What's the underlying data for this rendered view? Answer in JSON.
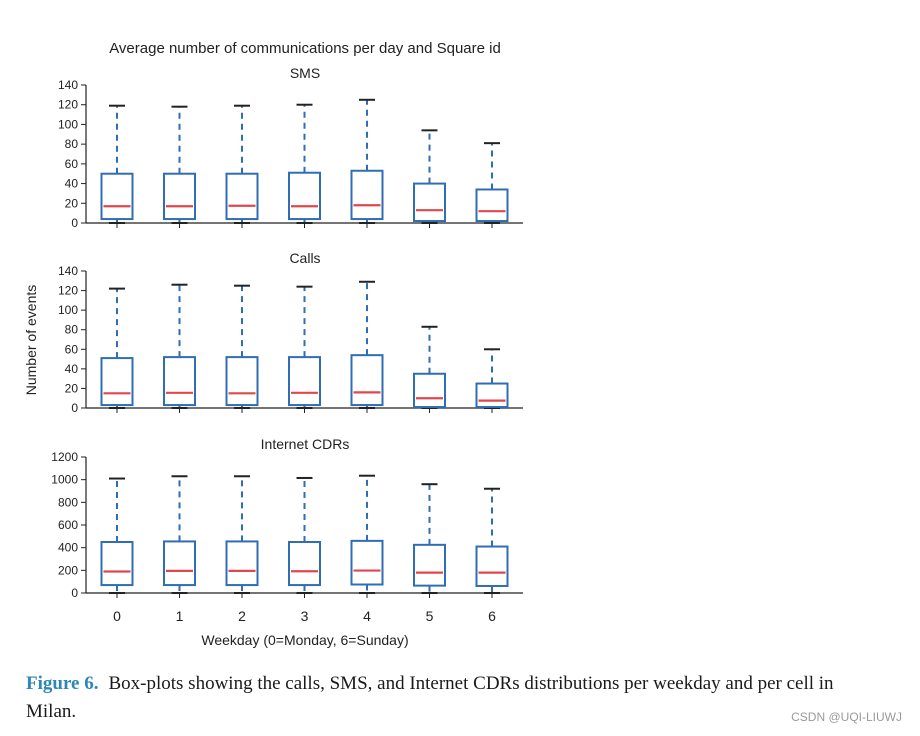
{
  "chart_data": {
    "type": "boxplot",
    "title": "Average number of communications per day and Square id",
    "xlabel": "Weekday (0=Monday, 6=Sunday)",
    "ylabel": "Number of events",
    "categories": [
      "0",
      "1",
      "2",
      "3",
      "4",
      "5",
      "6"
    ],
    "colors": {
      "box": "#2f6db5",
      "median": "#e0474c",
      "axis": "#222222"
    },
    "panels": [
      {
        "subtitle": "SMS",
        "ylim": [
          0,
          140
        ],
        "yticks": [
          0,
          20,
          40,
          60,
          80,
          100,
          120,
          140
        ],
        "boxes": [
          {
            "min": 0,
            "q1": 4,
            "median": 17,
            "q3": 50,
            "max": 119
          },
          {
            "min": 0,
            "q1": 4,
            "median": 17,
            "q3": 50,
            "max": 118
          },
          {
            "min": 0,
            "q1": 4,
            "median": 17.5,
            "q3": 50,
            "max": 119
          },
          {
            "min": 0,
            "q1": 4,
            "median": 17,
            "q3": 51,
            "max": 120
          },
          {
            "min": 0,
            "q1": 4,
            "median": 18,
            "q3": 53,
            "max": 125
          },
          {
            "min": 0,
            "q1": 2,
            "median": 13,
            "q3": 40,
            "max": 94
          },
          {
            "min": 0,
            "q1": 2,
            "median": 12,
            "q3": 34,
            "max": 81
          }
        ]
      },
      {
        "subtitle": "Calls",
        "ylim": [
          0,
          140
        ],
        "yticks": [
          0,
          20,
          40,
          60,
          80,
          100,
          120,
          140
        ],
        "boxes": [
          {
            "min": 0,
            "q1": 3,
            "median": 15,
            "q3": 51,
            "max": 122
          },
          {
            "min": 0,
            "q1": 3,
            "median": 15.5,
            "q3": 52,
            "max": 126
          },
          {
            "min": 0,
            "q1": 3,
            "median": 15,
            "q3": 52,
            "max": 125
          },
          {
            "min": 0,
            "q1": 3,
            "median": 15.5,
            "q3": 52,
            "max": 124
          },
          {
            "min": 0,
            "q1": 3,
            "median": 16,
            "q3": 54,
            "max": 129
          },
          {
            "min": 0,
            "q1": 1,
            "median": 10,
            "q3": 35,
            "max": 83
          },
          {
            "min": 0,
            "q1": 1,
            "median": 7.5,
            "q3": 25,
            "max": 60
          }
        ]
      },
      {
        "subtitle": "Internet CDRs",
        "ylim": [
          0,
          1200
        ],
        "yticks": [
          0,
          200,
          400,
          600,
          800,
          1000,
          1200
        ],
        "boxes": [
          {
            "min": 0,
            "q1": 70,
            "median": 190,
            "q3": 450,
            "max": 1010
          },
          {
            "min": 0,
            "q1": 70,
            "median": 195,
            "q3": 455,
            "max": 1030
          },
          {
            "min": 0,
            "q1": 70,
            "median": 195,
            "q3": 455,
            "max": 1030
          },
          {
            "min": 0,
            "q1": 70,
            "median": 192,
            "q3": 450,
            "max": 1015
          },
          {
            "min": 0,
            "q1": 75,
            "median": 198,
            "q3": 460,
            "max": 1035
          },
          {
            "min": 0,
            "q1": 65,
            "median": 180,
            "q3": 425,
            "max": 960
          },
          {
            "min": 0,
            "q1": 62,
            "median": 180,
            "q3": 410,
            "max": 920
          }
        ]
      }
    ]
  },
  "caption": {
    "lead": "Figure 6.",
    "text": "Box-plots showing the calls, SMS, and Internet CDRs distributions per weekday and per cell in Milan."
  },
  "watermark": "CSDN @UQI-LIUWJ"
}
